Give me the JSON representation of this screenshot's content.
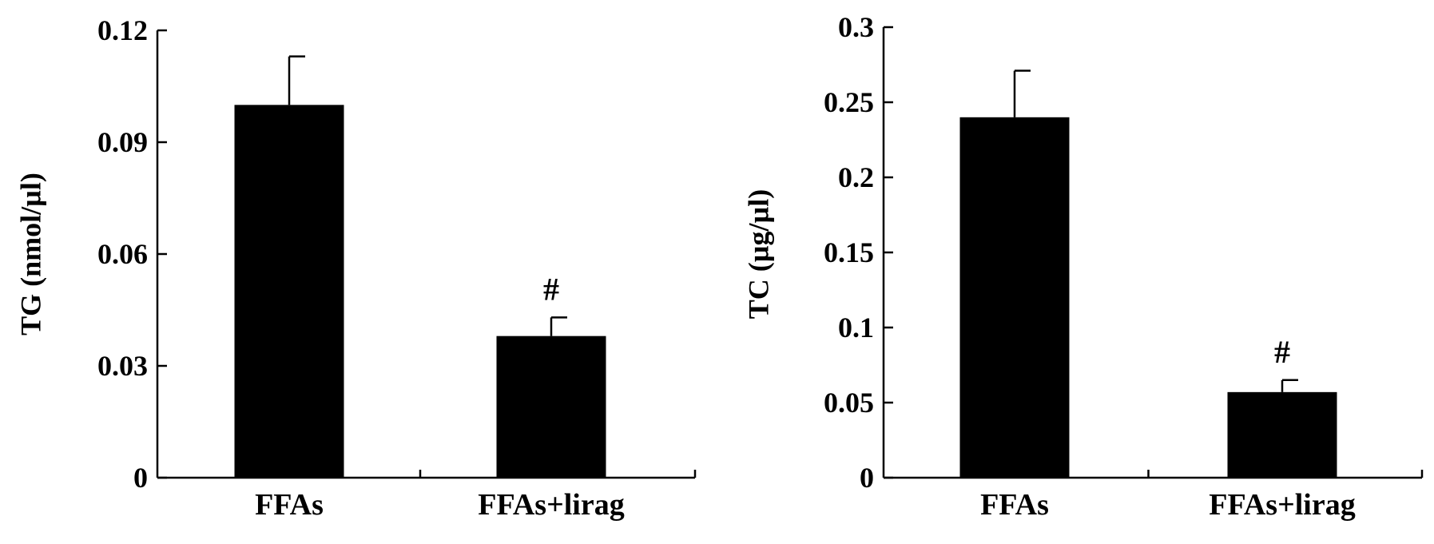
{
  "chart_data": [
    {
      "type": "bar",
      "title": "",
      "xlabel": "",
      "ylabel": "TG (nmol/µl)",
      "categories": [
        "FFAs",
        "FFAs+lirag"
      ],
      "values": [
        0.1,
        0.038
      ],
      "errors": [
        0.013,
        0.005
      ],
      "annotations": [
        "",
        "#"
      ],
      "ylim": [
        0,
        0.12
      ],
      "yticks": [
        0,
        0.03,
        0.06,
        0.09,
        0.12
      ],
      "ytick_labels": [
        "0",
        "0.03",
        "0.06",
        "0.09",
        "0.12"
      ],
      "bar_color": "#000000",
      "grid": false,
      "legend": "none"
    },
    {
      "type": "bar",
      "title": "",
      "xlabel": "",
      "ylabel": "TC (µg/µl)",
      "categories": [
        "FFAs",
        "FFAs+lirag"
      ],
      "values": [
        0.24,
        0.057
      ],
      "errors": [
        0.031,
        0.008
      ],
      "annotations": [
        "",
        "#"
      ],
      "ylim": [
        0,
        0.3
      ],
      "yticks": [
        0,
        0.05,
        0.1,
        0.15,
        0.2,
        0.25,
        0.3
      ],
      "ytick_labels": [
        "0",
        "0.05",
        "0.1",
        "0.15",
        "0.2",
        "0.25",
        "0.3"
      ],
      "bar_color": "#000000",
      "grid": false,
      "legend": "none"
    }
  ]
}
